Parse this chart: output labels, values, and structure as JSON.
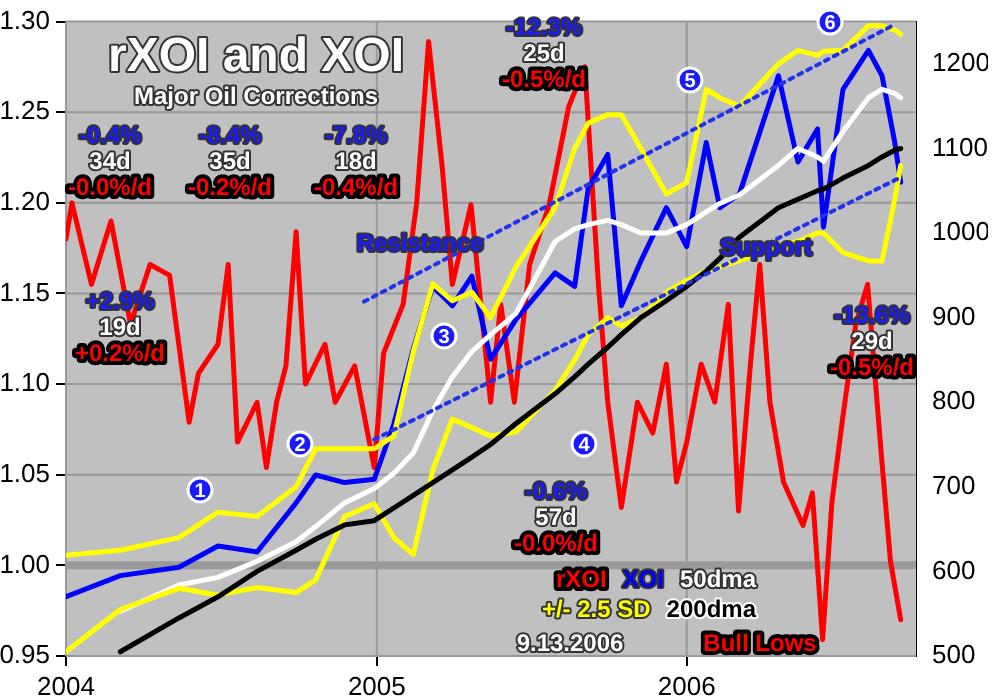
{
  "chart_data": {
    "type": "line",
    "title": "rXOI and XOI",
    "subtitle": "Major Oil Corrections",
    "x": [
      "2004-01-01",
      "2004-03-05",
      "2004-05-13",
      "2004-06-28",
      "2004-08-13",
      "2004-09-28",
      "2004-10-21",
      "2004-11-24",
      "2004-12-29",
      "2005-01-21",
      "2005-02-13",
      "2005-03-08",
      "2005-03-31",
      "2005-04-23",
      "2005-05-15",
      "2005-06-14",
      "2005-07-30",
      "2005-08-22",
      "2005-09-07",
      "2005-09-30",
      "2005-10-16",
      "2005-11-08",
      "2005-12-08",
      "2006-01-01",
      "2006-01-24",
      "2006-02-09",
      "2006-03-04",
      "2006-04-19",
      "2006-05-12",
      "2006-06-04",
      "2006-06-11",
      "2006-07-04",
      "2006-08-03",
      "2006-08-19",
      "2006-09-03",
      "2006-09-10"
    ],
    "series": [
      {
        "name": "rXOI",
        "color": "#ff0000",
        "x": [
          "2004-01-01",
          "2004-01-08",
          "2004-01-31",
          "2004-02-23",
          "2004-03-17",
          "2004-04-09",
          "2004-05-02",
          "2004-05-25",
          "2004-06-05",
          "2004-06-28",
          "2004-07-10",
          "2004-07-21",
          "2004-08-13",
          "2004-08-24",
          "2004-09-05",
          "2004-09-16",
          "2004-09-28",
          "2004-10-09",
          "2004-11-01",
          "2004-11-13",
          "2004-12-06",
          "2004-12-29",
          "2005-01-09",
          "2005-02-01",
          "2005-02-17",
          "2005-03-03",
          "2005-03-19",
          "2005-03-31",
          "2005-04-22",
          "2005-05-15",
          "2005-05-27",
          "2005-06-12",
          "2005-06-30",
          "2005-07-23",
          "2005-08-15",
          "2005-09-03",
          "2005-09-19",
          "2005-09-30",
          "2005-10-16",
          "2005-11-04",
          "2005-11-22",
          "2005-12-08",
          "2005-12-20",
          "2006-01-01",
          "2006-01-18",
          "2006-02-03",
          "2006-02-19",
          "2006-03-03",
          "2006-03-17",
          "2006-03-28",
          "2006-04-09",
          "2006-04-25",
          "2006-05-18",
          "2006-05-29",
          "2006-06-10",
          "2006-06-21",
          "2006-07-03",
          "2006-07-19",
          "2006-08-02",
          "2006-08-18",
          "2006-08-29",
          "2006-09-10"
        ],
        "values": [
          1.18,
          1.2,
          1.155,
          1.19,
          1.133,
          1.166,
          1.16,
          1.079,
          1.106,
          1.122,
          1.166,
          1.068,
          1.09,
          1.054,
          1.09,
          1.11,
          1.184,
          1.1,
          1.122,
          1.09,
          1.11,
          1.054,
          1.117,
          1.144,
          1.2,
          1.289,
          1.22,
          1.155,
          1.199,
          1.09,
          1.144,
          1.09,
          1.166,
          1.199,
          1.253,
          1.275,
          1.155,
          1.09,
          1.032,
          1.09,
          1.073,
          1.111,
          1.046,
          1.068,
          1.111,
          1.09,
          1.144,
          1.03,
          1.111,
          1.166,
          1.09,
          1.046,
          1.022,
          1.04,
          0.959,
          1.035,
          1.079,
          1.133,
          1.155,
          1.062,
          1.002,
          0.97
        ]
      },
      {
        "name": "XOI",
        "color": "#0000ff",
        "axis": "y2",
        "values": [
          570,
          595,
          605,
          630,
          623,
          681,
          714,
          705,
          709,
          774,
          863,
          937,
          914,
          949,
          851,
          898,
          953,
          937,
          1053,
          1093,
          914,
          967,
          1030,
          984,
          1107,
          1030,
          1046,
          1186,
          1084,
          1123,
          1007,
          1170,
          1216,
          1186,
          1107,
          1060
        ]
      },
      {
        "name": "50dma",
        "color": "#ffffff",
        "axis": "y2",
        "values": [
          null,
          553,
          584,
          593,
          612,
          635,
          653,
          681,
          698,
          716,
          740,
          790,
          830,
          860,
          880,
          905,
          990,
          1005,
          1010,
          1015,
          1010,
          1000,
          1000,
          1010,
          1025,
          1035,
          1045,
          1080,
          1100,
          1090,
          1085,
          1120,
          1160,
          1170,
          1165,
          1160
        ]
      },
      {
        "name": "+/- 2.5 SD",
        "color": "#ffff00",
        "axis": "y2",
        "values": [
          619,
          625,
          640,
          670,
          665,
          700,
          745,
          745,
          745,
          760,
          860,
          940,
          920,
          930,
          900,
          960,
          1030,
          1100,
          1130,
          1140,
          1140,
          1100,
          1046,
          1060,
          1170,
          1160,
          1150,
          1200,
          1216,
          1210,
          1215,
          1216,
          1245,
          1245,
          1240,
          1235
        ]
      },
      {
        "color": "#ffff00",
        "axis": "y2",
        "values": [
          505,
          555,
          580,
          572,
          581,
          575,
          590,
          665,
          680,
          640,
          620,
          720,
          780,
          770,
          760,
          765,
          814,
          850,
          880,
          900,
          890,
          900,
          930,
          944,
          955,
          960,
          967,
          985,
          990,
          1000,
          1000,
          977,
          967,
          967,
          1040,
          1080
        ]
      },
      {
        "name": "200dma",
        "color": "#000000",
        "axis": "y2",
        "values": [
          null,
          505,
          545,
          570,
          600,
          625,
          638,
          655,
          660,
          675,
          690,
          705,
          720,
          735,
          750,
          775,
          810,
          830,
          845,
          865,
          880,
          900,
          920,
          937,
          955,
          970,
          995,
          1030,
          1040,
          1050,
          1052,
          1065,
          1080,
          1090,
          1098,
          1100
        ]
      },
      {
        "color": "#2233ee",
        "axis": "y2",
        "line_style": "dotted",
        "x": [
          "2004-12-17",
          "2006-08-29"
        ],
        "values": [
          919,
          1244
        ]
      },
      {
        "color": "#2233ee",
        "axis": "y2",
        "line_style": "dotted",
        "x": [
          "2004-12-29",
          "2006-09-10"
        ],
        "values": [
          756,
          1066
        ]
      }
    ],
    "xlim": [
      "2004-01-01",
      "2006-09-28"
    ],
    "xticks": [
      "2004",
      "2005",
      "2006"
    ],
    "ylim": [
      0.95,
      1.3
    ],
    "yticks": [
      0.95,
      {
        "value": 1.0,
        "label": "1.00"
      },
      1.05,
      {
        "value": 1.1,
        "label": "1.10"
      },
      1.15,
      {
        "value": 1.2,
        "label": "1.20"
      },
      1.25,
      {
        "value": 1.3,
        "label": "1.30"
      }
    ],
    "y2lim": [
      500,
      1250
    ],
    "y2ticks": [
      500,
      600,
      700,
      800,
      900,
      1000,
      1100,
      1200
    ],
    "ref_lines": [
      {
        "axis": "y",
        "value": 1.0,
        "color": "#999999"
      }
    ],
    "grid": true,
    "legend": "bottom right",
    "marker": "none",
    "line_style": "solid",
    "annotations": [
      "+2.9%\n19d\n+0.2%/d",
      "-0.4%\n34d\n-0.0%/d",
      "-8.4%\n35d\n-0.2%/d",
      "-7.8%\n18d\n-0.4%/d",
      "-12.3%\n25d\n-0.5%/d",
      "-0.6%\n57d\n-0.0%/d",
      "-13.6%\n29d\n-0.5%/d",
      "Resistance",
      "Support",
      "Bull Lows",
      "9.13.2006",
      "1",
      "2",
      "3",
      "4",
      "5",
      "6"
    ]
  }
}
